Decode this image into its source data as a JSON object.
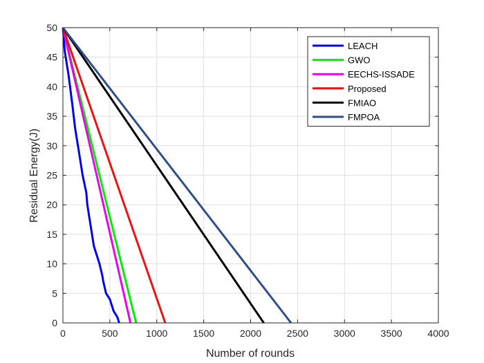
{
  "chart_data": {
    "type": "line",
    "xlabel": "Number of rounds",
    "ylabel": "Residual Energy(J)",
    "xlim": [
      0,
      4000
    ],
    "ylim": [
      0,
      50
    ],
    "xticks": [
      "0",
      "500",
      "1000",
      "1500",
      "2000",
      "2500",
      "3000",
      "3500",
      "4000"
    ],
    "yticks": [
      "0",
      "5",
      "10",
      "15",
      "20",
      "25",
      "30",
      "35",
      "40",
      "45",
      "50"
    ],
    "grid": true,
    "legend_position": "top-right",
    "series": [
      {
        "name": "LEACH",
        "color": "#0000ee",
        "x": [
          0,
          20,
          60,
          100,
          130,
          170,
          210,
          250,
          260,
          280,
          330,
          390,
          420,
          430,
          460,
          500,
          540,
          580,
          600
        ],
        "y": [
          50,
          46,
          42,
          37,
          33,
          29,
          25,
          22,
          20,
          18,
          13,
          10,
          8,
          7,
          5,
          4,
          2,
          1,
          0
        ]
      },
      {
        "name": "GWO",
        "color": "#00ee00",
        "x": [
          0,
          780
        ],
        "y": [
          50,
          0
        ]
      },
      {
        "name": "EECHS-ISSADE",
        "color": "#ee00ee",
        "x": [
          0,
          720
        ],
        "y": [
          50,
          0
        ]
      },
      {
        "name": "Proposed",
        "color": "#ee1111",
        "x": [
          0,
          1090
        ],
        "y": [
          50,
          0
        ]
      },
      {
        "name": "FMIAO",
        "color": "#000000",
        "x": [
          0,
          2140
        ],
        "y": [
          50,
          0
        ]
      },
      {
        "name": "FMPOA",
        "color": "#2e4d8c",
        "x": [
          0,
          2430
        ],
        "y": [
          50,
          0
        ]
      }
    ]
  }
}
